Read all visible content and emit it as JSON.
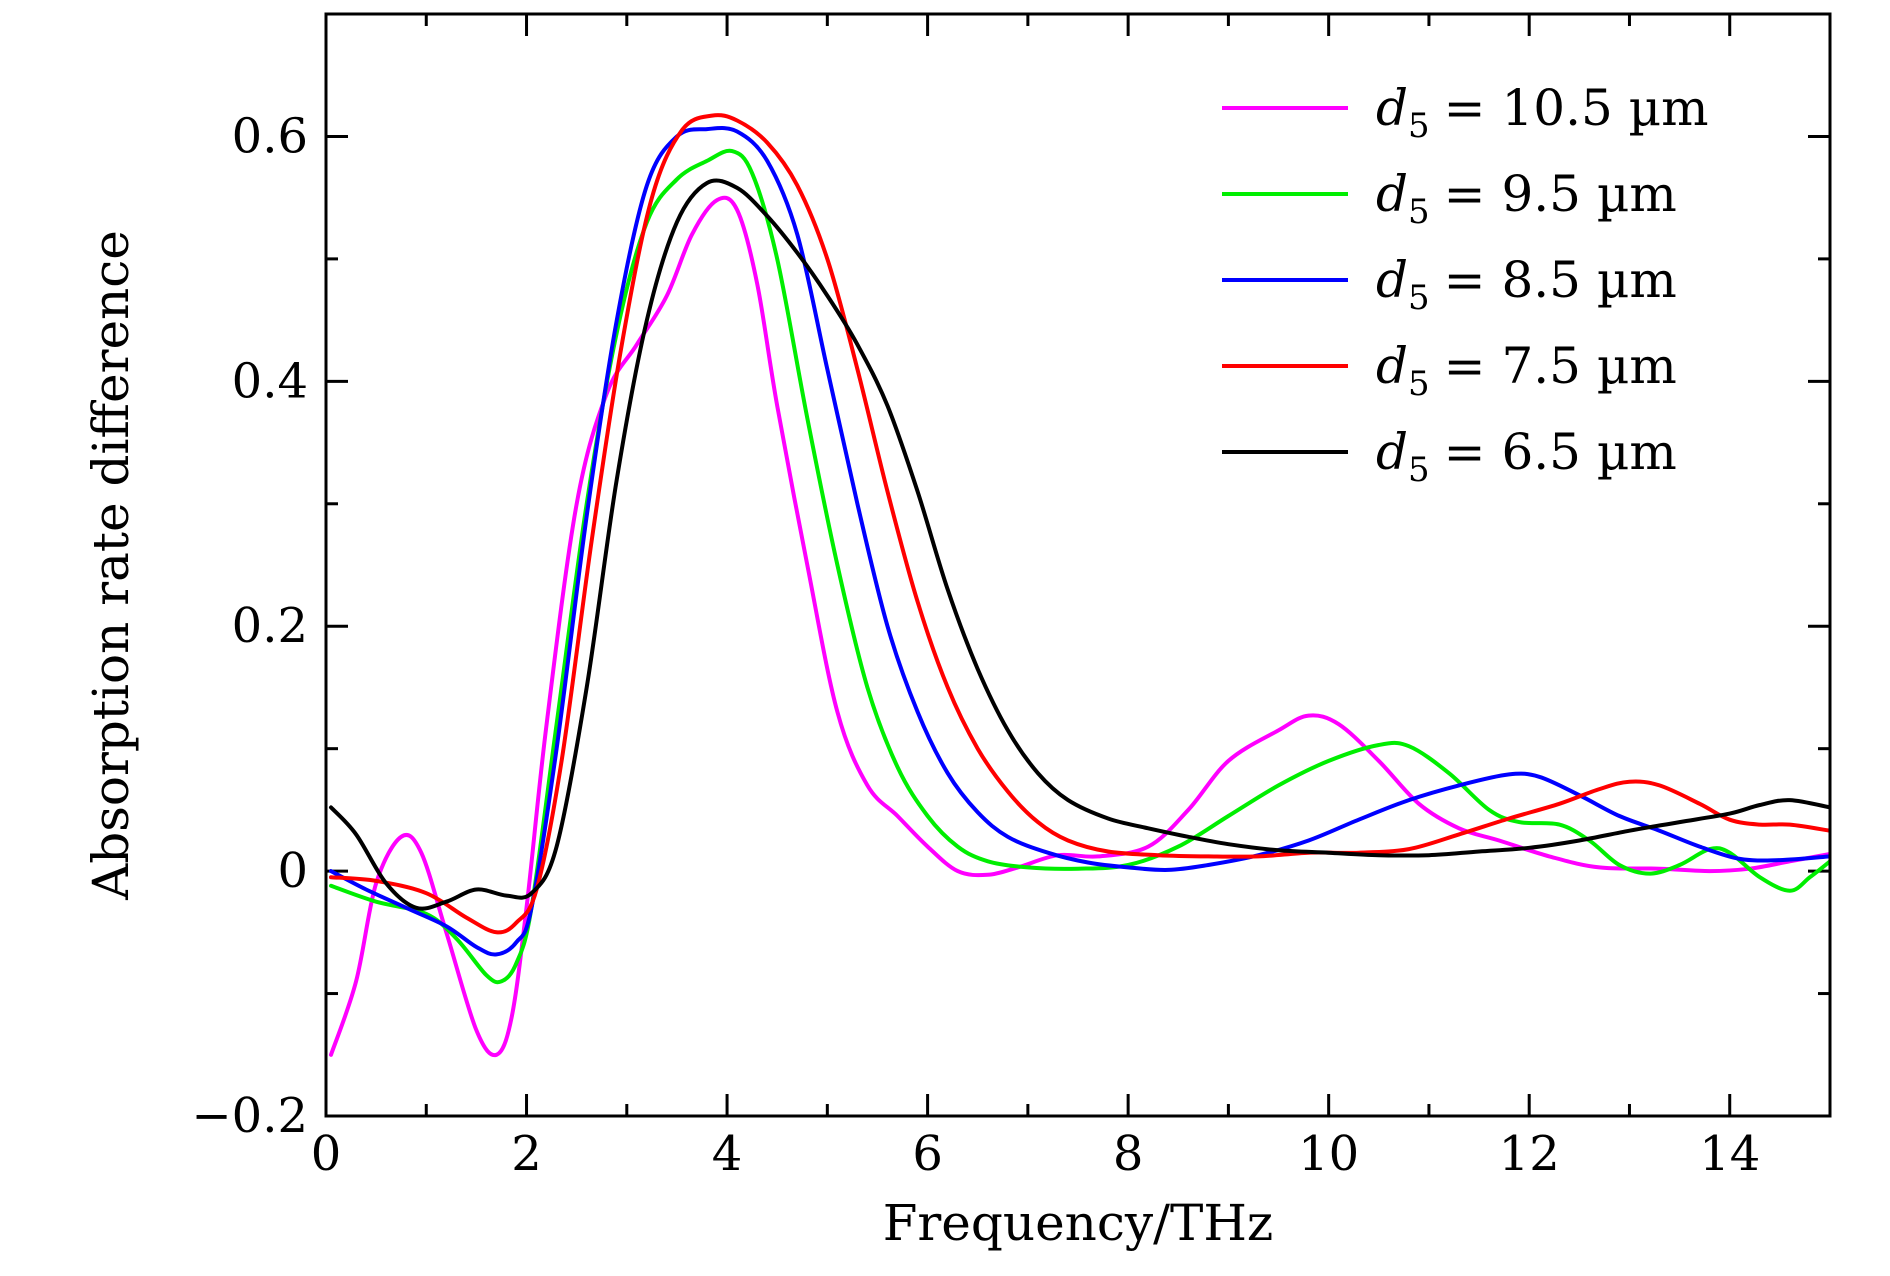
{
  "chart_data": {
    "type": "line",
    "title": "",
    "xlabel": "Frequency/THz",
    "ylabel": "Absorption rate difference",
    "xlim": [
      0,
      15
    ],
    "ylim": [
      -0.2,
      0.7
    ],
    "x_ticks": [
      0,
      2,
      4,
      6,
      8,
      10,
      12,
      14
    ],
    "x_tick_labels": [
      "0",
      "2",
      "4",
      "6",
      "8",
      "10",
      "12",
      "14"
    ],
    "y_ticks": [
      -0.2,
      0,
      0.2,
      0.4,
      0.6
    ],
    "y_tick_labels": [
      "−0.2",
      "0",
      "0.2",
      "0.4",
      "0.6"
    ],
    "grid": false,
    "legend": {
      "placement": "top-right"
    },
    "series": [
      {
        "name": "d5 = 10.5 µm",
        "legend": {
          "symbol": "d",
          "subscript": "5",
          "value": "= 10.5 µm"
        },
        "color": "#ff00ff",
        "points": [
          [
            0.05,
            -0.15
          ],
          [
            0.3,
            -0.09
          ],
          [
            0.5,
            -0.01
          ],
          [
            0.75,
            0.028
          ],
          [
            0.95,
            0.015
          ],
          [
            1.2,
            -0.05
          ],
          [
            1.5,
            -0.13
          ],
          [
            1.7,
            -0.15
          ],
          [
            1.85,
            -0.12
          ],
          [
            2.0,
            -0.03
          ],
          [
            2.2,
            0.12
          ],
          [
            2.5,
            0.3
          ],
          [
            2.8,
            0.39
          ],
          [
            3.1,
            0.43
          ],
          [
            3.4,
            0.47
          ],
          [
            3.65,
            0.52
          ],
          [
            3.9,
            0.548
          ],
          [
            4.1,
            0.54
          ],
          [
            4.3,
            0.48
          ],
          [
            4.5,
            0.38
          ],
          [
            4.8,
            0.25
          ],
          [
            5.1,
            0.13
          ],
          [
            5.4,
            0.07
          ],
          [
            5.7,
            0.045
          ],
          [
            6.0,
            0.02
          ],
          [
            6.3,
            0.0
          ],
          [
            6.6,
            -0.003
          ],
          [
            6.9,
            0.003
          ],
          [
            7.3,
            0.013
          ],
          [
            7.7,
            0.012
          ],
          [
            8.2,
            0.02
          ],
          [
            8.6,
            0.05
          ],
          [
            9.0,
            0.09
          ],
          [
            9.5,
            0.115
          ],
          [
            9.8,
            0.127
          ],
          [
            10.1,
            0.12
          ],
          [
            10.5,
            0.09
          ],
          [
            10.9,
            0.055
          ],
          [
            11.3,
            0.035
          ],
          [
            11.7,
            0.025
          ],
          [
            12.2,
            0.012
          ],
          [
            12.7,
            0.003
          ],
          [
            13.3,
            0.002
          ],
          [
            13.8,
            0.0
          ],
          [
            14.2,
            0.002
          ],
          [
            14.6,
            0.008
          ],
          [
            15.0,
            0.014
          ]
        ]
      },
      {
        "name": "d5 = 9.5 µm",
        "legend": {
          "symbol": "d",
          "subscript": "5",
          "value": "= 9.5 µm"
        },
        "color": "#00ee00",
        "points": [
          [
            0.05,
            -0.012
          ],
          [
            0.5,
            -0.025
          ],
          [
            1.0,
            -0.035
          ],
          [
            1.3,
            -0.055
          ],
          [
            1.6,
            -0.085
          ],
          [
            1.75,
            -0.09
          ],
          [
            1.9,
            -0.075
          ],
          [
            2.05,
            -0.03
          ],
          [
            2.3,
            0.12
          ],
          [
            2.6,
            0.3
          ],
          [
            2.9,
            0.44
          ],
          [
            3.2,
            0.53
          ],
          [
            3.5,
            0.565
          ],
          [
            3.8,
            0.58
          ],
          [
            4.05,
            0.588
          ],
          [
            4.25,
            0.57
          ],
          [
            4.5,
            0.5
          ],
          [
            4.8,
            0.37
          ],
          [
            5.1,
            0.25
          ],
          [
            5.4,
            0.15
          ],
          [
            5.7,
            0.085
          ],
          [
            6.0,
            0.045
          ],
          [
            6.3,
            0.02
          ],
          [
            6.6,
            0.008
          ],
          [
            7.0,
            0.003
          ],
          [
            7.5,
            0.002
          ],
          [
            8.0,
            0.005
          ],
          [
            8.5,
            0.02
          ],
          [
            9.0,
            0.045
          ],
          [
            9.5,
            0.07
          ],
          [
            10.0,
            0.09
          ],
          [
            10.5,
            0.103
          ],
          [
            10.8,
            0.102
          ],
          [
            11.2,
            0.08
          ],
          [
            11.6,
            0.05
          ],
          [
            11.9,
            0.04
          ],
          [
            12.3,
            0.038
          ],
          [
            12.6,
            0.025
          ],
          [
            12.9,
            0.005
          ],
          [
            13.2,
            -0.002
          ],
          [
            13.5,
            0.005
          ],
          [
            13.8,
            0.018
          ],
          [
            14.0,
            0.015
          ],
          [
            14.3,
            -0.005
          ],
          [
            14.6,
            -0.016
          ],
          [
            14.8,
            -0.005
          ],
          [
            15.0,
            0.008
          ]
        ]
      },
      {
        "name": "d5 = 8.5 µm",
        "legend": {
          "symbol": "d",
          "subscript": "5",
          "value": "= 8.5 µm"
        },
        "color": "#0000ff",
        "points": [
          [
            0.05,
            0.0
          ],
          [
            0.4,
            -0.015
          ],
          [
            0.8,
            -0.03
          ],
          [
            1.2,
            -0.045
          ],
          [
            1.5,
            -0.062
          ],
          [
            1.7,
            -0.068
          ],
          [
            1.9,
            -0.058
          ],
          [
            2.05,
            -0.03
          ],
          [
            2.3,
            0.1
          ],
          [
            2.6,
            0.29
          ],
          [
            2.9,
            0.45
          ],
          [
            3.2,
            0.56
          ],
          [
            3.5,
            0.6
          ],
          [
            3.8,
            0.606
          ],
          [
            4.1,
            0.604
          ],
          [
            4.4,
            0.58
          ],
          [
            4.7,
            0.52
          ],
          [
            5.0,
            0.41
          ],
          [
            5.3,
            0.3
          ],
          [
            5.6,
            0.2
          ],
          [
            5.9,
            0.13
          ],
          [
            6.2,
            0.08
          ],
          [
            6.5,
            0.048
          ],
          [
            6.8,
            0.028
          ],
          [
            7.2,
            0.015
          ],
          [
            7.6,
            0.007
          ],
          [
            8.0,
            0.003
          ],
          [
            8.4,
            0.001
          ],
          [
            8.8,
            0.005
          ],
          [
            9.3,
            0.013
          ],
          [
            9.8,
            0.025
          ],
          [
            10.3,
            0.042
          ],
          [
            10.8,
            0.058
          ],
          [
            11.3,
            0.07
          ],
          [
            11.8,
            0.079
          ],
          [
            12.1,
            0.077
          ],
          [
            12.5,
            0.062
          ],
          [
            12.9,
            0.045
          ],
          [
            13.3,
            0.033
          ],
          [
            13.7,
            0.02
          ],
          [
            14.1,
            0.01
          ],
          [
            14.5,
            0.009
          ],
          [
            15.0,
            0.012
          ]
        ]
      },
      {
        "name": "d5 = 7.5 µm",
        "legend": {
          "symbol": "d",
          "subscript": "5",
          "value": "= 7.5 µm"
        },
        "color": "#ff0000",
        "points": [
          [
            0.05,
            -0.005
          ],
          [
            0.5,
            -0.008
          ],
          [
            1.0,
            -0.018
          ],
          [
            1.4,
            -0.038
          ],
          [
            1.7,
            -0.05
          ],
          [
            1.9,
            -0.042
          ],
          [
            2.1,
            -0.015
          ],
          [
            2.35,
            0.09
          ],
          [
            2.65,
            0.27
          ],
          [
            2.95,
            0.43
          ],
          [
            3.25,
            0.55
          ],
          [
            3.55,
            0.605
          ],
          [
            3.85,
            0.617
          ],
          [
            4.1,
            0.613
          ],
          [
            4.4,
            0.595
          ],
          [
            4.7,
            0.56
          ],
          [
            5.0,
            0.5
          ],
          [
            5.3,
            0.41
          ],
          [
            5.6,
            0.31
          ],
          [
            5.9,
            0.22
          ],
          [
            6.2,
            0.15
          ],
          [
            6.5,
            0.1
          ],
          [
            6.8,
            0.065
          ],
          [
            7.1,
            0.04
          ],
          [
            7.4,
            0.025
          ],
          [
            7.8,
            0.016
          ],
          [
            8.3,
            0.013
          ],
          [
            8.8,
            0.012
          ],
          [
            9.3,
            0.012
          ],
          [
            9.8,
            0.015
          ],
          [
            10.3,
            0.015
          ],
          [
            10.8,
            0.018
          ],
          [
            11.3,
            0.03
          ],
          [
            11.8,
            0.043
          ],
          [
            12.3,
            0.055
          ],
          [
            12.7,
            0.067
          ],
          [
            13.0,
            0.073
          ],
          [
            13.3,
            0.07
          ],
          [
            13.7,
            0.055
          ],
          [
            14.0,
            0.042
          ],
          [
            14.3,
            0.038
          ],
          [
            14.6,
            0.038
          ],
          [
            15.0,
            0.033
          ]
        ]
      },
      {
        "name": "d5 = 6.5 µm",
        "legend": {
          "symbol": "d",
          "subscript": "5",
          "value": "= 6.5 µm"
        },
        "color": "#000000",
        "points": [
          [
            0.05,
            0.052
          ],
          [
            0.3,
            0.03
          ],
          [
            0.6,
            -0.01
          ],
          [
            0.9,
            -0.03
          ],
          [
            1.2,
            -0.025
          ],
          [
            1.5,
            -0.015
          ],
          [
            1.8,
            -0.02
          ],
          [
            2.05,
            -0.018
          ],
          [
            2.3,
            0.02
          ],
          [
            2.6,
            0.15
          ],
          [
            2.9,
            0.32
          ],
          [
            3.2,
            0.45
          ],
          [
            3.5,
            0.53
          ],
          [
            3.8,
            0.562
          ],
          [
            4.1,
            0.558
          ],
          [
            4.4,
            0.535
          ],
          [
            4.7,
            0.505
          ],
          [
            5.0,
            0.47
          ],
          [
            5.3,
            0.43
          ],
          [
            5.6,
            0.38
          ],
          [
            5.9,
            0.31
          ],
          [
            6.2,
            0.23
          ],
          [
            6.5,
            0.165
          ],
          [
            6.8,
            0.115
          ],
          [
            7.1,
            0.08
          ],
          [
            7.4,
            0.058
          ],
          [
            7.8,
            0.043
          ],
          [
            8.2,
            0.035
          ],
          [
            8.6,
            0.028
          ],
          [
            9.0,
            0.022
          ],
          [
            9.5,
            0.017
          ],
          [
            10.0,
            0.015
          ],
          [
            10.5,
            0.013
          ],
          [
            11.0,
            0.013
          ],
          [
            11.5,
            0.016
          ],
          [
            12.0,
            0.019
          ],
          [
            12.5,
            0.025
          ],
          [
            13.0,
            0.033
          ],
          [
            13.5,
            0.04
          ],
          [
            14.0,
            0.047
          ],
          [
            14.3,
            0.054
          ],
          [
            14.6,
            0.058
          ],
          [
            15.0,
            0.052
          ]
        ]
      }
    ]
  }
}
